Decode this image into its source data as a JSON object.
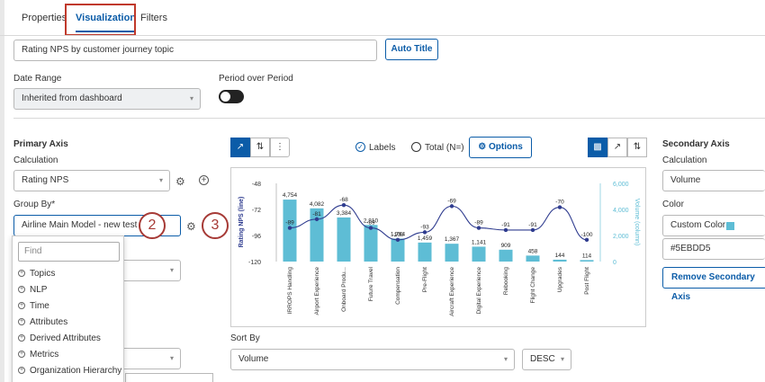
{
  "tabs": [
    {
      "label": "Properties"
    },
    {
      "label": "Visualization"
    },
    {
      "label": "Filters"
    }
  ],
  "title_input": {
    "value": "Rating NPS by customer journey topic"
  },
  "auto_title_label": "Auto Title",
  "date_range": {
    "label": "Date Range",
    "value": "Inherited from dashboard"
  },
  "period_over_period": {
    "label": "Period over Period",
    "enabled": false
  },
  "primary_axis": {
    "heading": "Primary Axis",
    "calculation_label": "Calculation",
    "calculation_value": "Rating NPS",
    "group_by_label": "Group By*",
    "group_by_value": "Airline Main Model - new test"
  },
  "callouts": [
    "2",
    "3"
  ],
  "dropdown": {
    "find_placeholder": "Find",
    "items": [
      "Topics",
      "NLP",
      "Time",
      "Attributes",
      "Derived Attributes",
      "Metrics",
      "Organization Hierarchy"
    ]
  },
  "chart_toolbar": {
    "labels_label": "Labels",
    "total_label": "Total (N=)",
    "options_label": "Options"
  },
  "sort_by": {
    "label": "Sort By",
    "value": "Volume",
    "order": "DESC"
  },
  "secondary_axis": {
    "heading": "Secondary Axis",
    "calculation_label": "Calculation",
    "calculation_value": "Volume",
    "color_label": "Color",
    "color_value": "Custom Color",
    "color_hex": "#5EBDD5",
    "remove_label": "Remove Secondary Axis"
  },
  "chart_data": {
    "type": "bar",
    "categories": [
      "IRROPS Handling",
      "Airport Experience",
      "Onboard Produ...",
      "Future Travel",
      "Compensation",
      "Pre-Flight",
      "Aircraft Experience",
      "Digital Experience",
      "Rebooking",
      "Flight Change",
      "Upgrades",
      "Post Flight"
    ],
    "series": [
      {
        "name": "Volume (column)",
        "type": "bar",
        "axis": "right",
        "values": [
          4754,
          4082,
          3384,
          2810,
          1764,
          1459,
          1367,
          1141,
          909,
          458,
          144,
          114
        ],
        "labels": [
          "4,754",
          "4,082",
          "3,384",
          "2,810",
          "1,764",
          "1,459",
          "1,367",
          "1,141",
          "909",
          "458",
          "144",
          "114"
        ],
        "color": "#5EBDD5"
      },
      {
        "name": "Rating NPS (line)",
        "type": "line",
        "axis": "left",
        "values": [
          -89,
          -81,
          -68,
          -89,
          -100,
          -93,
          -69,
          -89,
          -91,
          -91,
          -70,
          -100
        ],
        "color": "#2f3c8f"
      }
    ],
    "ylabel_left": "Rating NPS (line)",
    "ylabel_right": "Volume (column)",
    "ylim_left": [
      -120,
      -48
    ],
    "yticks_left": [
      "-48",
      "-72",
      "-96",
      "-120"
    ],
    "ylim_right": [
      0,
      6000
    ],
    "yticks_right": [
      "6,000",
      "4,000",
      "2,000",
      "0"
    ]
  }
}
